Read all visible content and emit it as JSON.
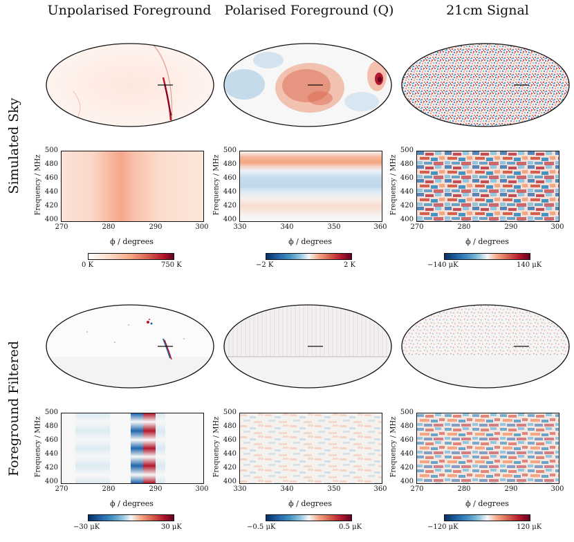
{
  "columns": [
    {
      "title": "Unpolarised Foreground"
    },
    {
      "title": "Polarised Foreground (Q)"
    },
    {
      "title": "21cm Signal"
    }
  ],
  "rows": [
    {
      "title": "Simulated Sky"
    },
    {
      "title": "Foreground Filtered"
    }
  ],
  "axes": {
    "ylabel": "Frequency / MHz",
    "xlabel": "ϕ / degrees",
    "yticks": [
      "500",
      "480",
      "460",
      "440",
      "420",
      "400"
    ],
    "xticks_a": [
      "270",
      "280",
      "290",
      "300"
    ],
    "xticks_b": [
      "330",
      "340",
      "350",
      "360"
    ]
  },
  "colorbars": [
    {
      "min": "0 K",
      "max": "750 K"
    },
    {
      "min": "−2 K",
      "max": "2 K"
    },
    {
      "min": "−140 μK",
      "max": "140 μK"
    },
    {
      "min": "−30 μK",
      "max": "30 μK"
    },
    {
      "min": "−0.5 μK",
      "max": "0.5 μK"
    },
    {
      "min": "−120 μK",
      "max": "120 μK"
    }
  ],
  "colors": {
    "red": "#b2182b",
    "blue": "#2166ac",
    "white": "#f7f7f7"
  }
}
